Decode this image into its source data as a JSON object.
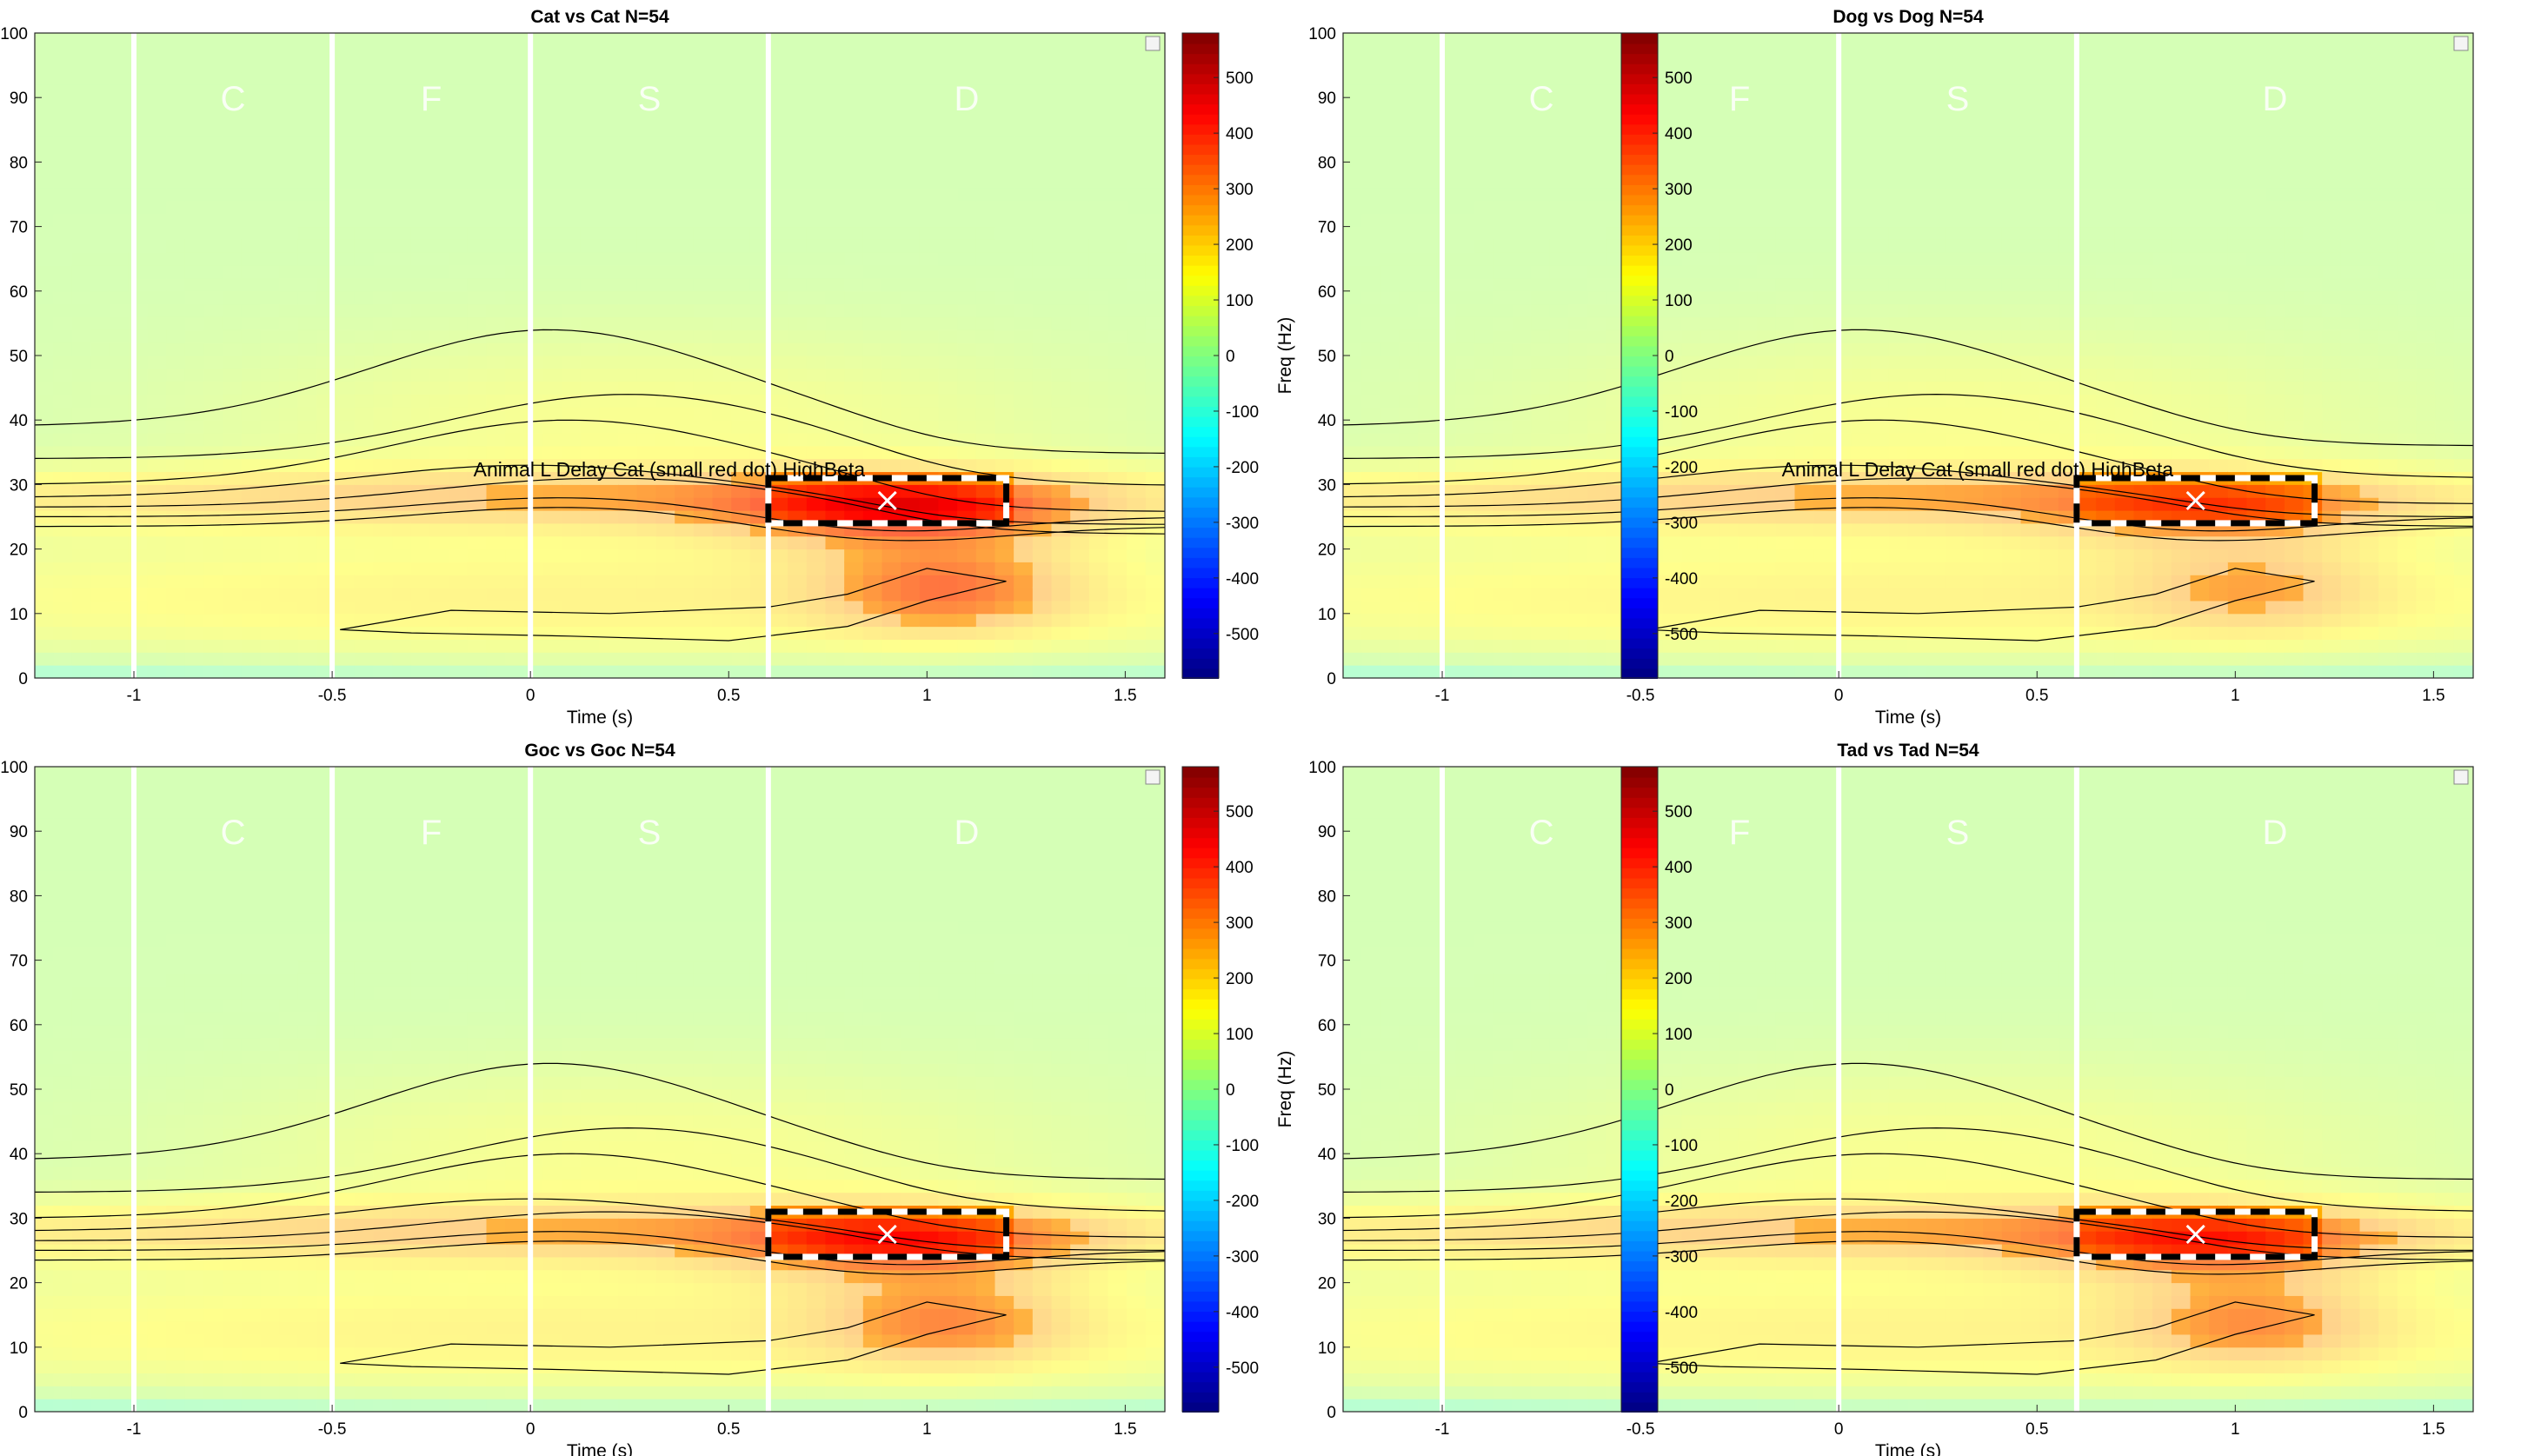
{
  "figure": {
    "panels": [
      {
        "title": "Cat vs Cat N=54",
        "roi_label": "Animal L Delay Cat (small red dot) HighBeta",
        "blob_strength": 1.0
      },
      {
        "title": "Dog vs Dog N=54",
        "roi_label": "Animal L Delay Cat (small red dot) HighBeta",
        "blob_strength": 0.65
      },
      {
        "title": "Goc vs Goc N=54",
        "roi_label": "",
        "blob_strength": 0.85
      },
      {
        "title": "Tad vs Tad N=54",
        "roi_label": "",
        "blob_strength": 0.8
      }
    ],
    "xlabel": "Time (s)",
    "ylabel": "Freq (Hz)",
    "epoch_labels": [
      {
        "text": "C",
        "t": -0.75
      },
      {
        "text": "F",
        "t": -0.25
      },
      {
        "text": "S",
        "t": 0.3
      },
      {
        "text": "D",
        "t": 1.1
      }
    ],
    "epoch_boundaries": [
      -1.0,
      -0.5,
      0.0,
      0.6
    ],
    "colormap": "jet"
  },
  "chart_data": [
    {
      "type": "heatmap",
      "title": "Cat vs Cat N=54",
      "xlabel": "Time (s)",
      "ylabel": "Freq (Hz)",
      "xlim": [
        -1.25,
        1.6
      ],
      "ylim": [
        0,
        100
      ],
      "xticks": [
        -1,
        -0.5,
        0,
        0.5,
        1,
        1.5
      ],
      "yticks": [
        0,
        10,
        20,
        30,
        40,
        50,
        60,
        70,
        80,
        90,
        100
      ],
      "clim": [
        -580,
        580
      ],
      "colorbar_ticks": [
        -500,
        -400,
        -300,
        -200,
        -100,
        0,
        100,
        200,
        300,
        400,
        500
      ],
      "roi": {
        "t": [
          0.6,
          1.2
        ],
        "f": [
          24,
          31
        ],
        "marker": [
          0.9,
          27.5
        ]
      },
      "annotation": "Animal L Delay Cat (small red dot) HighBeta"
    },
    {
      "type": "heatmap",
      "title": "Dog vs Dog N=54",
      "xlabel": "Time (s)",
      "ylabel": "Freq (Hz)",
      "xlim": [
        -1.25,
        1.6
      ],
      "ylim": [
        0,
        100
      ],
      "xticks": [
        -1,
        -0.5,
        0,
        0.5,
        1,
        1.5
      ],
      "yticks": [
        0,
        10,
        20,
        30,
        40,
        50,
        60,
        70,
        80,
        90,
        100
      ],
      "clim": [
        -580,
        580
      ],
      "colorbar_ticks": [
        -500,
        -400,
        -300,
        -200,
        -100,
        0,
        100,
        200,
        300,
        400,
        500
      ],
      "roi": {
        "t": [
          0.6,
          1.2
        ],
        "f": [
          24,
          31
        ],
        "marker": [
          0.9,
          27.5
        ]
      },
      "annotation": "Animal L Delay Cat (small red dot) HighBeta"
    },
    {
      "type": "heatmap",
      "title": "Goc vs Goc N=54",
      "xlabel": "Time (s)",
      "ylabel": "Freq (Hz)",
      "xlim": [
        -1.25,
        1.6
      ],
      "ylim": [
        0,
        100
      ],
      "xticks": [
        -1,
        -0.5,
        0,
        0.5,
        1,
        1.5
      ],
      "yticks": [
        0,
        10,
        20,
        30,
        40,
        50,
        60,
        70,
        80,
        90,
        100
      ],
      "clim": [
        -580,
        580
      ],
      "colorbar_ticks": [
        -500,
        -400,
        -300,
        -200,
        -100,
        0,
        100,
        200,
        300,
        400,
        500
      ],
      "roi": {
        "t": [
          0.6,
          1.2
        ],
        "f": [
          24,
          31
        ],
        "marker": [
          0.9,
          27.5
        ]
      }
    },
    {
      "type": "heatmap",
      "title": "Tad vs Tad N=54",
      "xlabel": "Time (s)",
      "ylabel": "Freq (Hz)",
      "xlim": [
        -1.25,
        1.6
      ],
      "ylim": [
        0,
        100
      ],
      "xticks": [
        -1,
        -0.5,
        0,
        0.5,
        1,
        1.5
      ],
      "yticks": [
        0,
        10,
        20,
        30,
        40,
        50,
        60,
        70,
        80,
        90,
        100
      ],
      "clim": [
        -580,
        580
      ],
      "colorbar_ticks": [
        -500,
        -400,
        -300,
        -200,
        -100,
        0,
        100,
        200,
        300,
        400,
        500
      ],
      "roi": {
        "t": [
          0.6,
          1.2
        ],
        "f": [
          24,
          31
        ],
        "marker": [
          0.9,
          27.5
        ]
      }
    }
  ]
}
